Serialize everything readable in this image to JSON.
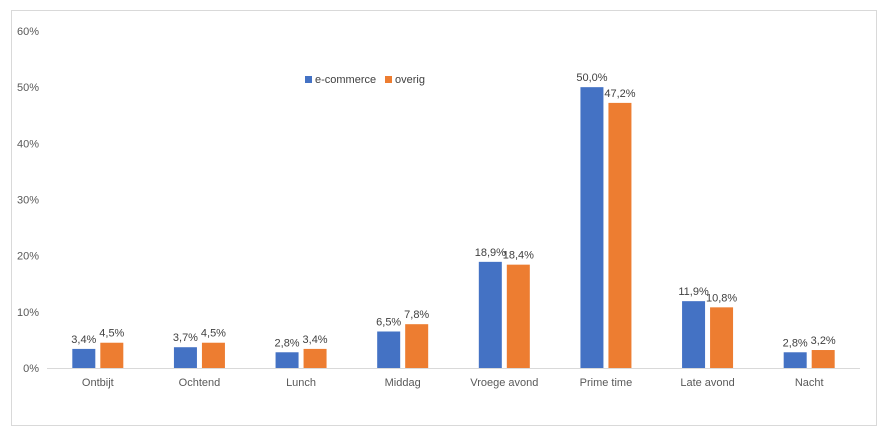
{
  "chart_data": {
    "type": "bar",
    "categories": [
      "Ontbijt",
      "Ochtend",
      "Lunch",
      "Middag",
      "Vroege avond",
      "Prime time",
      "Late avond",
      "Nacht"
    ],
    "series": [
      {
        "name": "e-commerce",
        "color": "#4472c4",
        "values": [
          3.4,
          3.7,
          2.8,
          6.5,
          18.9,
          50.0,
          11.9,
          2.8
        ],
        "labels": [
          "3,4%",
          "3,7%",
          "2,8%",
          "6,5%",
          "18,9%",
          "50,0%",
          "11,9%",
          "2,8%"
        ]
      },
      {
        "name": "overig",
        "color": "#ed7d31",
        "values": [
          4.5,
          4.5,
          3.4,
          7.8,
          18.4,
          47.2,
          10.8,
          3.2
        ],
        "labels": [
          "4,5%",
          "4,5%",
          "3,4%",
          "7,8%",
          "18,4%",
          "47,2%",
          "10,8%",
          "3,2%"
        ]
      }
    ],
    "y_ticks": [
      "0%",
      "10%",
      "20%",
      "30%",
      "40%",
      "50%",
      "60%"
    ],
    "ylim": [
      0,
      60
    ],
    "grid": false,
    "legend_position": "top-center",
    "title": "",
    "xlabel": "",
    "ylabel": ""
  }
}
